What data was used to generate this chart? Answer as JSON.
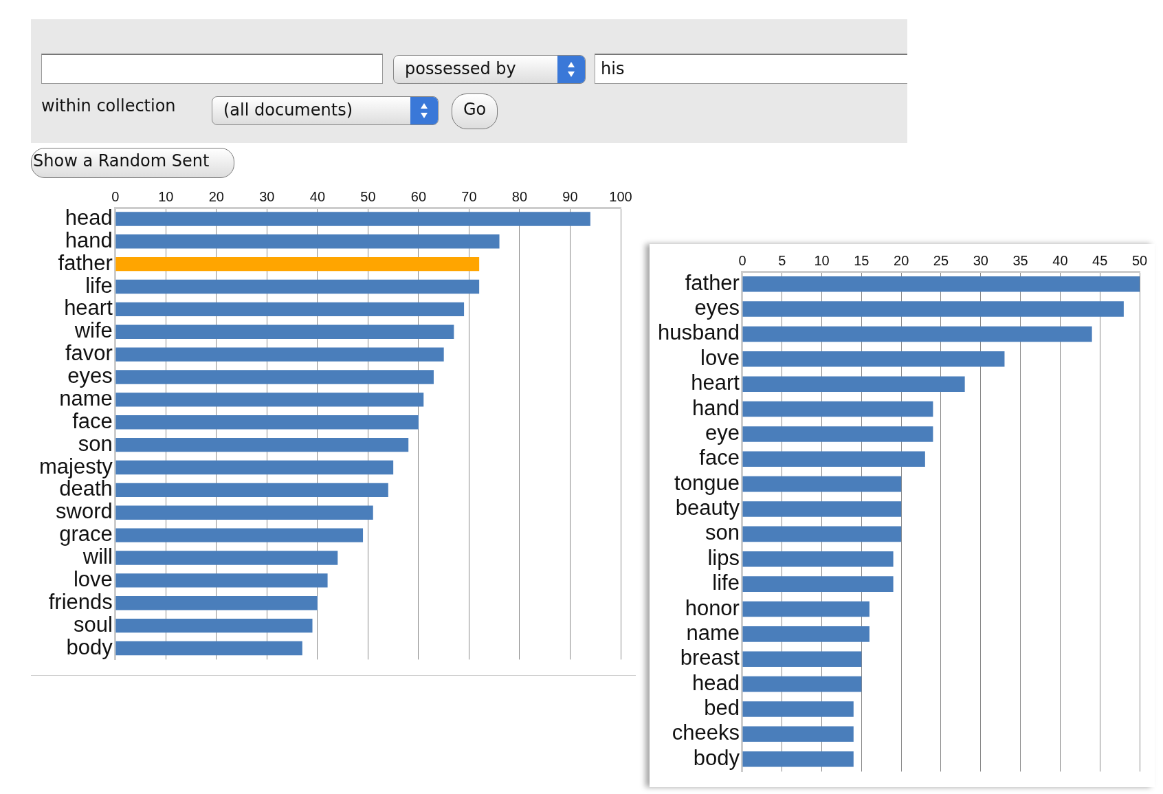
{
  "chart_data": [
    {
      "type": "bar",
      "orientation": "horizontal",
      "categories": [
        "head",
        "hand",
        "father",
        "life",
        "heart",
        "wife",
        "favor",
        "eyes",
        "name",
        "face",
        "son",
        "majesty",
        "death",
        "sword",
        "grace",
        "will",
        "love",
        "friends",
        "soul",
        "body"
      ],
      "values": [
        94,
        76,
        72,
        72,
        69,
        67,
        65,
        63,
        61,
        60,
        58,
        55,
        54,
        51,
        49,
        44,
        42,
        40,
        39,
        37
      ],
      "colors": [
        "#4a7ebb",
        "#4a7ebb",
        "#ffa500",
        "#4a7ebb",
        "#4a7ebb",
        "#4a7ebb",
        "#4a7ebb",
        "#4a7ebb",
        "#4a7ebb",
        "#4a7ebb",
        "#4a7ebb",
        "#4a7ebb",
        "#4a7ebb",
        "#4a7ebb",
        "#4a7ebb",
        "#4a7ebb",
        "#4a7ebb",
        "#4a7ebb",
        "#4a7ebb",
        "#4a7ebb"
      ],
      "xlim": [
        0,
        100
      ],
      "xticks": [
        0,
        10,
        20,
        30,
        40,
        50,
        60,
        70,
        80,
        90,
        100
      ],
      "grid": "x",
      "legend": false,
      "annotations": [
        "possessed by",
        "his",
        "within collection",
        "(all documents)",
        "Go",
        "Show a Random Sent"
      ]
    },
    {
      "type": "bar",
      "orientation": "horizontal",
      "categories": [
        "father",
        "eyes",
        "husband",
        "love",
        "heart",
        "hand",
        "eye",
        "face",
        "tongue",
        "beauty",
        "son",
        "lips",
        "life",
        "honor",
        "name",
        "breast",
        "head",
        "bed",
        "cheeks",
        "body"
      ],
      "values": [
        50,
        48,
        44,
        33,
        28,
        24,
        24,
        23,
        20,
        20,
        20,
        19,
        19,
        16,
        16,
        15,
        15,
        14,
        14,
        14
      ],
      "color": "#4a7ebb",
      "xlim": [
        0,
        50
      ],
      "xticks": [
        0,
        5,
        10,
        15,
        20,
        25,
        30,
        35,
        40,
        45,
        50
      ],
      "grid": "x",
      "legend": false
    }
  ]
}
